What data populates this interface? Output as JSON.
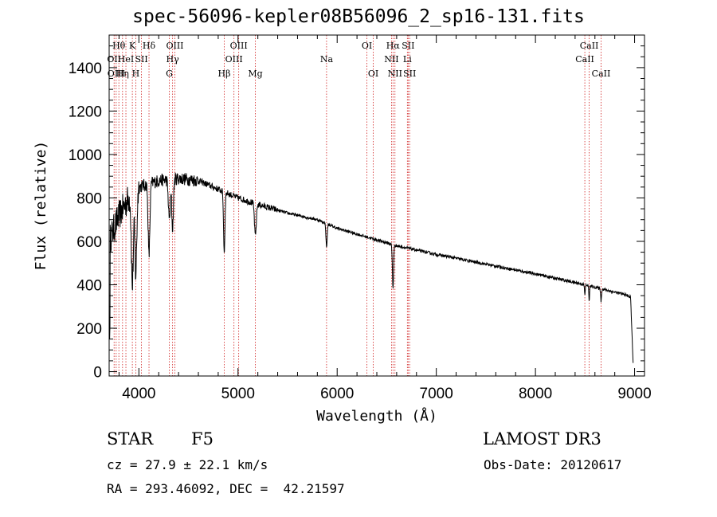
{
  "chart_data": {
    "type": "line",
    "title": "spec-56096-kepler08B56096_2_sp16-131.fits",
    "xlabel": "Wavelength (Å)",
    "ylabel": "Flux (relative)",
    "xlim": [
      3700,
      9100
    ],
    "ylim": [
      -20,
      1550
    ],
    "x_ticks": [
      4000,
      5000,
      6000,
      7000,
      8000,
      9000
    ],
    "y_ticks": [
      0,
      200,
      400,
      600,
      800,
      1000,
      1200,
      1400
    ],
    "lines": [
      {
        "wl": 3750,
        "label": "OII",
        "row": 1
      },
      {
        "wl": 3771,
        "label": "OIII",
        "row": 2
      },
      {
        "wl": 3798,
        "label": "Hθ",
        "row": 0
      },
      {
        "wl": 3835,
        "label": "Hη",
        "row": 2
      },
      {
        "wl": 3869,
        "label": "HeI",
        "row": 1
      },
      {
        "wl": 3934,
        "label": "K",
        "row": 0
      },
      {
        "wl": 3969,
        "label": "H",
        "row": 2
      },
      {
        "wl": 4026,
        "label": "SII",
        "row": 1
      },
      {
        "wl": 4102,
        "label": "Hδ",
        "row": 0
      },
      {
        "wl": 4307,
        "label": "G",
        "row": 2
      },
      {
        "wl": 4340,
        "label": "Hγ",
        "row": 1
      },
      {
        "wl": 4363,
        "label": "OIII",
        "row": 0
      },
      {
        "wl": 4861,
        "label": "Hβ",
        "row": 2
      },
      {
        "wl": 4959,
        "label": "OIII",
        "row": 1
      },
      {
        "wl": 5007,
        "label": "OIII",
        "row": 0
      },
      {
        "wl": 5175,
        "label": "Mg",
        "row": 2
      },
      {
        "wl": 5893,
        "label": "Na",
        "row": 1
      },
      {
        "wl": 6300,
        "label": "OI",
        "row": 0
      },
      {
        "wl": 6364,
        "label": "OI",
        "row": 2
      },
      {
        "wl": 6548,
        "label": "NII",
        "row": 1
      },
      {
        "wl": 6563,
        "label": "Hα",
        "row": 0
      },
      {
        "wl": 6583,
        "label": "NII",
        "row": 2
      },
      {
        "wl": 6708,
        "label": "Li",
        "row": 1
      },
      {
        "wl": 6716,
        "label": "SII",
        "row": 0
      },
      {
        "wl": 6731,
        "label": "SII",
        "row": 2
      },
      {
        "wl": 8498,
        "label": "CaII",
        "row": 1
      },
      {
        "wl": 8542,
        "label": "CaII",
        "row": 0
      },
      {
        "wl": 8662,
        "label": "CaII",
        "row": 2
      }
    ],
    "continuum": [
      [
        3700,
        600
      ],
      [
        3800,
        720
      ],
      [
        3900,
        800
      ],
      [
        4000,
        850
      ],
      [
        4200,
        880
      ],
      [
        4400,
        890
      ],
      [
        4600,
        880
      ],
      [
        4800,
        840
      ],
      [
        5000,
        800
      ],
      [
        5200,
        770
      ],
      [
        5500,
        730
      ],
      [
        5800,
        700
      ],
      [
        6000,
        660
      ],
      [
        6300,
        620
      ],
      [
        6600,
        580
      ],
      [
        7000,
        540
      ],
      [
        7500,
        495
      ],
      [
        8000,
        450
      ],
      [
        8500,
        400
      ],
      [
        8900,
        355
      ],
      [
        8980,
        340
      ]
    ],
    "absorption": [
      {
        "wl": 3934,
        "depth": 420,
        "width": 10
      },
      {
        "wl": 3969,
        "depth": 380,
        "width": 10
      },
      {
        "wl": 4102,
        "depth": 330,
        "width": 9
      },
      {
        "wl": 4307,
        "depth": 180,
        "width": 10
      },
      {
        "wl": 4340,
        "depth": 230,
        "width": 8
      },
      {
        "wl": 4861,
        "depth": 280,
        "width": 7
      },
      {
        "wl": 5175,
        "depth": 150,
        "width": 9
      },
      {
        "wl": 5893,
        "depth": 110,
        "width": 6
      },
      {
        "wl": 6563,
        "depth": 200,
        "width": 6
      },
      {
        "wl": 8498,
        "depth": 45,
        "width": 4
      },
      {
        "wl": 8542,
        "depth": 65,
        "width": 4
      },
      {
        "wl": 8662,
        "depth": 60,
        "width": 4
      }
    ]
  },
  "info": {
    "object_class": "STAR",
    "subclass": "F5",
    "survey": "LAMOST DR3",
    "redshift": "cz = 27.9 ± 22.1 km/s",
    "obs_date": "Obs-Date: 20120617",
    "coords": "RA = 293.46092, DEC =  42.21597"
  }
}
